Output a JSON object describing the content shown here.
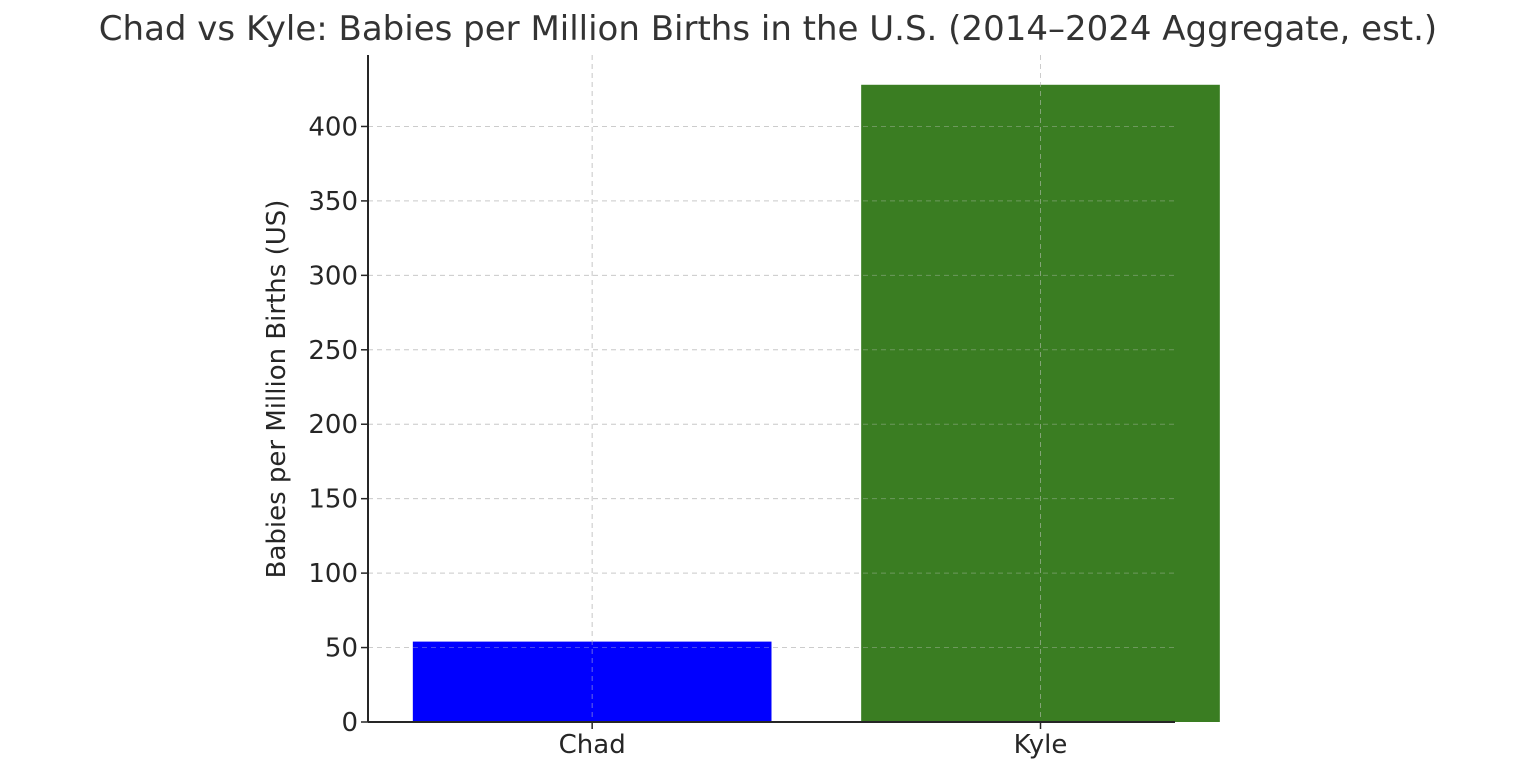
{
  "chart_data": {
    "type": "bar",
    "title": "Chad vs Kyle: Babies per Million Births in the U.S. (2014–2024 Aggregate, est.)",
    "xlabel": "",
    "ylabel": "Babies per Million Births (US)",
    "categories": [
      "Chad",
      "Kyle"
    ],
    "values": [
      54,
      428
    ],
    "colors": [
      "#0000ff",
      "#3a7d22"
    ],
    "ylim": [
      0,
      448
    ],
    "yticks": [
      0,
      50,
      100,
      150,
      200,
      250,
      300,
      350,
      400
    ],
    "grid": true,
    "legend": "none"
  }
}
